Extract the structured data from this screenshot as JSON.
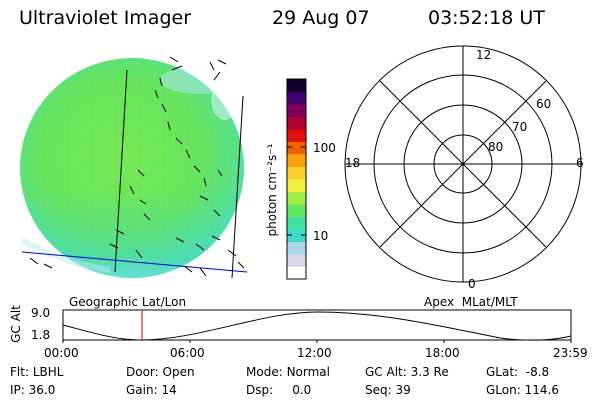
{
  "header": {
    "instrument": "Ultraviolet Imager",
    "date": "29 Aug 07",
    "time": "03:52:18 UT"
  },
  "colorbar": {
    "unit_label": "photon cm⁻²s⁻¹",
    "ticks": [
      {
        "label": "100",
        "value": 100
      },
      {
        "label": "10",
        "value": 10
      }
    ],
    "colors": [
      "#ffffff",
      "#d8d8e8",
      "#a8d8e8",
      "#40d8d0",
      "#40e0a0",
      "#60e860",
      "#a0f040",
      "#f0f040",
      "#f8d030",
      "#f8a010",
      "#f06000",
      "#e01010",
      "#b00030",
      "#800060",
      "#400070",
      "#100030"
    ]
  },
  "polar_grid": {
    "mlt_labels": {
      "top": "12",
      "left": "18",
      "right": "6",
      "bottom": "0"
    },
    "mlat_labels": [
      "60",
      "70",
      "80"
    ]
  },
  "plot_labels": {
    "left": "Geographic Lat/Lon",
    "right": "Apex  MLat/MLT"
  },
  "orbit_plot": {
    "ylabel": "GC Alt",
    "yticks": [
      "9.0",
      "1.8"
    ],
    "xticks": [
      "00:00",
      "06:00",
      "12:00",
      "18:00",
      "23:59"
    ],
    "marker_time": "03:52"
  },
  "status": {
    "row1": [
      {
        "key": "Flt:",
        "value": "LBHL"
      },
      {
        "key": "Door:",
        "value": "Open"
      },
      {
        "key": "Mode:",
        "value": "Normal"
      },
      {
        "key": "GC Alt:",
        "value": "3.3 Re"
      },
      {
        "key": "GLat:",
        "value": "-8.8"
      }
    ],
    "row2": [
      {
        "key": "IP:",
        "value": "36.0"
      },
      {
        "key": "Gain:",
        "value": "14"
      },
      {
        "key": "Dsp:",
        "value": "0.0"
      },
      {
        "key": "Seq:",
        "value": "39"
      },
      {
        "key": "GLon:",
        "value": "114.6"
      }
    ]
  },
  "colors": {
    "blue_line": "#0000cc",
    "marker": "#e00000",
    "aurora_green": "#60e860",
    "aurora_cyan": "#40d8d0"
  }
}
